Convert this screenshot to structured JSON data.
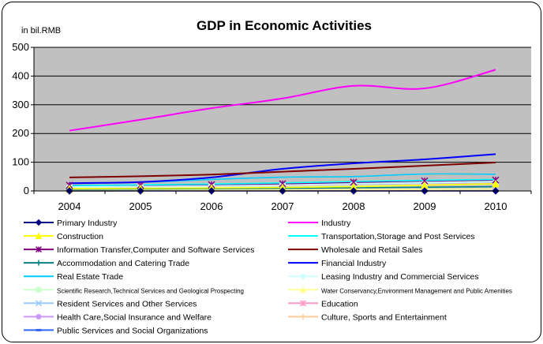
{
  "chart_data": {
    "type": "line",
    "title": "GDP in Economic Activities",
    "unit_label": "in bil.RMB",
    "x": [
      "2004",
      "2005",
      "2006",
      "2007",
      "2008",
      "2009",
      "2010"
    ],
    "ylim": [
      0,
      500
    ],
    "yticks": [
      "0",
      "100",
      "200",
      "300",
      "400",
      "500"
    ],
    "grid": true,
    "plot_background": "#c0c0c0",
    "legend_position": "bottom",
    "series": [
      {
        "name": "Primary Industry",
        "color": "#000080",
        "marker": "diamond",
        "values": [
          0,
          0,
          0,
          0,
          0,
          0,
          0
        ]
      },
      {
        "name": "Industry",
        "color": "#ff00ff",
        "marker": "none",
        "values": [
          210,
          248,
          288,
          322,
          366,
          357,
          422
        ]
      },
      {
        "name": "Construction",
        "color": "#ffff00",
        "marker": "triangle",
        "values": [
          8,
          9,
          10,
          12,
          15,
          20,
          25
        ]
      },
      {
        "name": "Transportation,Storage and Post Services",
        "color": "#00ffff",
        "marker": "none",
        "values": [
          19,
          21,
          24,
          28,
          33,
          37,
          40
        ]
      },
      {
        "name": "Information Transfer,Computer and Software Services",
        "color": "#800080",
        "marker": "star",
        "values": [
          20,
          20,
          22,
          25,
          30,
          35,
          38
        ]
      },
      {
        "name": "Wholesale and Retail Sales",
        "color": "#800000",
        "marker": "none",
        "values": [
          47,
          51,
          57,
          67,
          77,
          88,
          99
        ]
      },
      {
        "name": "Accommodation and Catering Trade",
        "color": "#008080",
        "marker": "plus",
        "values": [
          6,
          7,
          8,
          9,
          11,
          13,
          15
        ]
      },
      {
        "name": "Financial Industry",
        "color": "#0000ff",
        "marker": "none",
        "values": [
          27,
          31,
          47,
          77,
          96,
          110,
          128
        ]
      },
      {
        "name": "Real Estate Trade",
        "color": "#00ccff",
        "marker": "none",
        "values": [
          27,
          30,
          40,
          48,
          50,
          59,
          58
        ]
      },
      {
        "name": "Leasing Industry and Commercial Services",
        "color": "#ccffff",
        "marker": "diamond",
        "values": [
          14,
          16,
          18,
          21,
          25,
          28,
          32
        ]
      },
      {
        "name": "Scientific Research,Technical Services and Geological Prospecting",
        "color": "#ccffcc",
        "marker": "square",
        "values": [
          10,
          11,
          13,
          15,
          18,
          21,
          24
        ]
      },
      {
        "name": "Water Conservancy,Environment Management and Public Amenities",
        "color": "#ffff99",
        "marker": "triangle",
        "values": [
          3,
          3,
          4,
          4,
          5,
          6,
          7
        ]
      },
      {
        "name": "Resident Services and Other Services",
        "color": "#99ccff",
        "marker": "x",
        "values": [
          7,
          8,
          9,
          10,
          12,
          13,
          14
        ]
      },
      {
        "name": "Education",
        "color": "#ff99cc",
        "marker": "star",
        "values": [
          12,
          13,
          15,
          17,
          19,
          22,
          25
        ]
      },
      {
        "name": "Health Care,Social Insurance and Welfare",
        "color": "#cc99ff",
        "marker": "circle",
        "values": [
          6,
          7,
          8,
          9,
          11,
          13,
          15
        ]
      },
      {
        "name": "Culture, Sports and Entertainment",
        "color": "#ffcc99",
        "marker": "plus",
        "values": [
          3,
          3,
          4,
          4,
          5,
          6,
          7
        ]
      },
      {
        "name": "Public Services and Social Organizations",
        "color": "#3366ff",
        "marker": "dash",
        "values": [
          15,
          17,
          19,
          22,
          25,
          28,
          32
        ]
      }
    ]
  }
}
